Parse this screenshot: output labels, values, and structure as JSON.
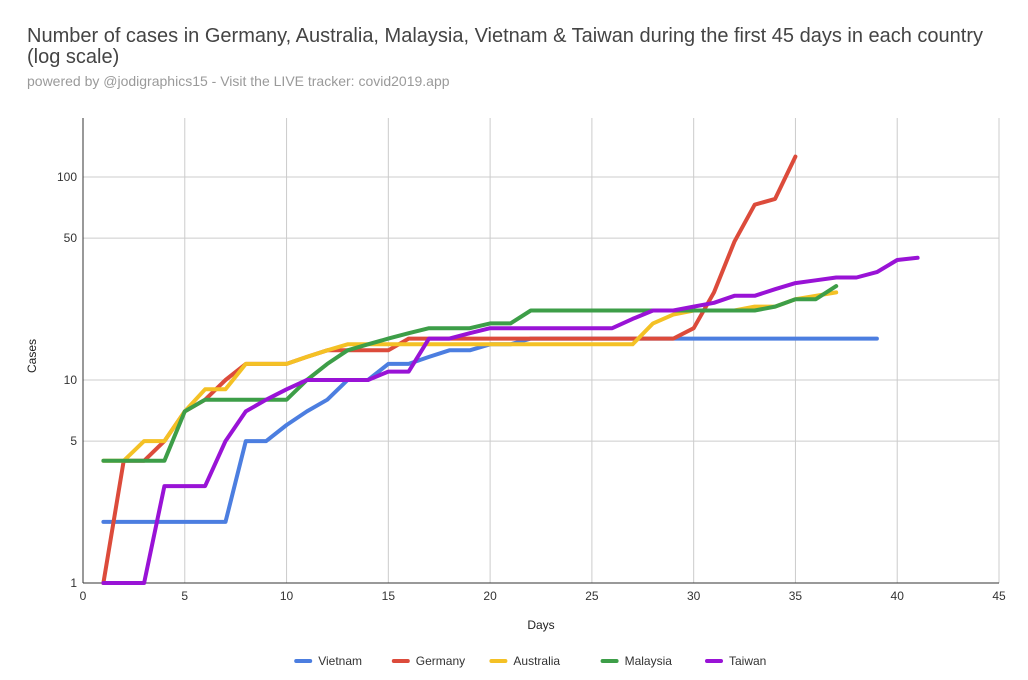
{
  "chart_data": {
    "type": "line",
    "title": "Number of cases in Germany, Australia, Malaysia, Vietnam & Taiwan during the first 45 days in each country (log scale)",
    "subtitle": "powered by @jodigraphics15 - Visit the LIVE tracker: covid2019.app",
    "xlabel": "Days",
    "ylabel": "Cases",
    "y_scale": "log",
    "xlim": [
      0,
      45
    ],
    "ylim": [
      1,
      200
    ],
    "x_ticks": [
      "0",
      "5",
      "10",
      "15",
      "20",
      "25",
      "30",
      "35",
      "40",
      "45"
    ],
    "y_ticks": [
      "1",
      "5",
      "10",
      "50",
      "100"
    ],
    "grid": true,
    "legend_position": "bottom",
    "series": [
      {
        "name": "Vietnam",
        "color": "#4c7ee0",
        "x": [
          1,
          2,
          3,
          4,
          5,
          6,
          7,
          8,
          9,
          10,
          11,
          12,
          13,
          14,
          15,
          16,
          17,
          18,
          19,
          20,
          21,
          22,
          23,
          24,
          25,
          26,
          27,
          28,
          29,
          30,
          31,
          32,
          33,
          34,
          35,
          36,
          37,
          38,
          39
        ],
        "y": [
          2,
          2,
          2,
          2,
          2,
          2,
          2,
          5,
          5,
          6,
          7,
          8,
          10,
          10,
          12,
          12,
          13,
          14,
          14,
          15,
          15,
          16,
          16,
          16,
          16,
          16,
          16,
          16,
          16,
          16,
          16,
          16,
          16,
          16,
          16,
          16,
          16,
          16,
          16
        ]
      },
      {
        "name": "Germany",
        "color": "#dc4b3b",
        "x": [
          1,
          2,
          3,
          4,
          5,
          6,
          7,
          8,
          9,
          10,
          11,
          12,
          13,
          14,
          15,
          16,
          17,
          18,
          19,
          20,
          21,
          22,
          23,
          24,
          25,
          26,
          27,
          28,
          29,
          30,
          31,
          32,
          33,
          34,
          35
        ],
        "y": [
          1,
          4,
          4,
          5,
          7,
          8,
          10,
          12,
          12,
          12,
          13,
          14,
          14,
          14,
          14,
          16,
          16,
          16,
          16,
          16,
          16,
          16,
          16,
          16,
          16,
          16,
          16,
          16,
          16,
          18,
          27,
          48,
          73,
          78,
          126
        ]
      },
      {
        "name": "Australia",
        "color": "#f4c125",
        "x": [
          1,
          2,
          3,
          4,
          5,
          6,
          7,
          8,
          9,
          10,
          11,
          12,
          13,
          14,
          15,
          16,
          17,
          18,
          19,
          20,
          21,
          22,
          23,
          24,
          25,
          26,
          27,
          28,
          29,
          30,
          31,
          32,
          33,
          34,
          35,
          36,
          37
        ],
        "y": [
          4,
          4,
          5,
          5,
          7,
          9,
          9,
          12,
          12,
          12,
          13,
          14,
          15,
          15,
          15,
          15,
          15,
          15,
          15,
          15,
          15,
          15,
          15,
          15,
          15,
          15,
          15,
          19,
          21,
          22,
          22,
          22,
          23,
          23,
          25,
          26,
          27
        ]
      },
      {
        "name": "Malaysia",
        "color": "#3d9e48",
        "x": [
          1,
          2,
          3,
          4,
          5,
          6,
          7,
          8,
          9,
          10,
          11,
          12,
          13,
          14,
          15,
          16,
          17,
          18,
          19,
          20,
          21,
          22,
          23,
          24,
          25,
          26,
          27,
          28,
          29,
          30,
          31,
          32,
          33,
          34,
          35,
          36,
          37
        ],
        "y": [
          4,
          4,
          4,
          4,
          7,
          8,
          8,
          8,
          8,
          8,
          10,
          12,
          14,
          15,
          16,
          17,
          18,
          18,
          18,
          19,
          19,
          22,
          22,
          22,
          22,
          22,
          22,
          22,
          22,
          22,
          22,
          22,
          22,
          23,
          25,
          25,
          29
        ]
      },
      {
        "name": "Taiwan",
        "color": "#9913d6",
        "x": [
          1,
          2,
          3,
          4,
          5,
          6,
          7,
          8,
          9,
          10,
          11,
          12,
          13,
          14,
          15,
          16,
          17,
          18,
          19,
          20,
          21,
          22,
          23,
          24,
          25,
          26,
          27,
          28,
          29,
          30,
          31,
          32,
          33,
          34,
          35,
          36,
          37,
          38,
          39,
          40,
          41
        ],
        "y": [
          1,
          1,
          1,
          3,
          3,
          3,
          5,
          7,
          8,
          9,
          10,
          10,
          10,
          10,
          11,
          11,
          16,
          16,
          17,
          18,
          18,
          18,
          18,
          18,
          18,
          18,
          20,
          22,
          22,
          23,
          24,
          26,
          26,
          28,
          30,
          31,
          32,
          32,
          34,
          39,
          40
        ]
      }
    ]
  }
}
